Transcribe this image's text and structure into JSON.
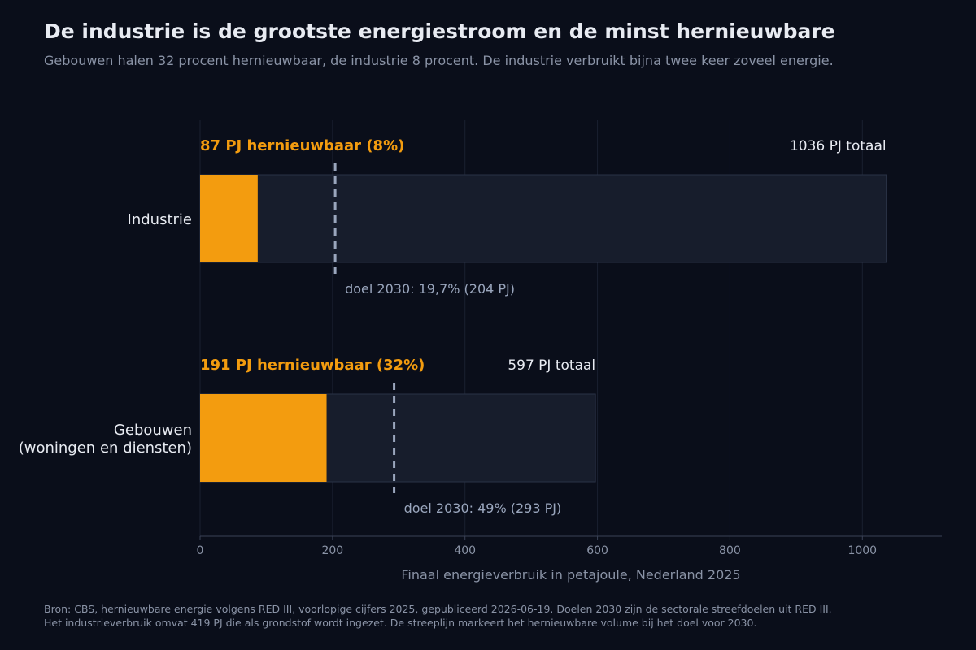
{
  "title": "De industrie is de grootste energiestroom en de minst hernieuwbare",
  "subtitle": "Gebouwen halen 32 procent hernieuwbaar, de industrie 8 procent. De industrie verbruikt bijna twee keer zoveel energie.",
  "footer": {
    "line1": "Bron: CBS, hernieuwbare energie volgens RED III, voorlopige cijfers 2025, gepubliceerd 2026-06-19. Doelen 2030 zijn de sectorale streefdoelen uit RED III.",
    "line2": "Het industrieverbruik omvat 419 PJ die als grondstof wordt ingezet. De streeplijn markeert het hernieuwbare volume bij het doel voor 2030."
  },
  "colors": {
    "background": "#0a0e1a",
    "renewable": "#f39c0f",
    "total_bar": "#171d2c",
    "target_line": "#9aa6bd",
    "text_light": "#e8ebf2",
    "text_muted": "#8a93a6"
  },
  "chart_data": {
    "type": "bar",
    "orientation": "horizontal",
    "stacked": "overlay",
    "xlabel": "Finaal energieverbruik in petajoule, Nederland 2025",
    "xlim": [
      0,
      1120
    ],
    "xticks": [
      0,
      200,
      400,
      600,
      800,
      1000
    ],
    "grid": true,
    "categories": [
      "Industrie",
      "Gebouwen (woningen en diensten)"
    ],
    "category_lines": [
      [
        "Industrie"
      ],
      [
        "Gebouwen",
        "(woningen en diensten)"
      ]
    ],
    "series": [
      {
        "name": "hernieuwbaar",
        "values": [
          87,
          191
        ]
      },
      {
        "name": "totaal",
        "values": [
          1036,
          597
        ]
      }
    ],
    "targets_2030": [
      204,
      293
    ],
    "annotations": {
      "renewable_labels": [
        "87 PJ hernieuwbaar  (8%)",
        "191 PJ hernieuwbaar  (32%)"
      ],
      "total_labels": [
        "1036 PJ totaal",
        "597 PJ totaal"
      ],
      "target_labels": [
        "doel 2030: 19,7%  (204 PJ)",
        "doel 2030: 49%  (293 PJ)"
      ]
    }
  }
}
